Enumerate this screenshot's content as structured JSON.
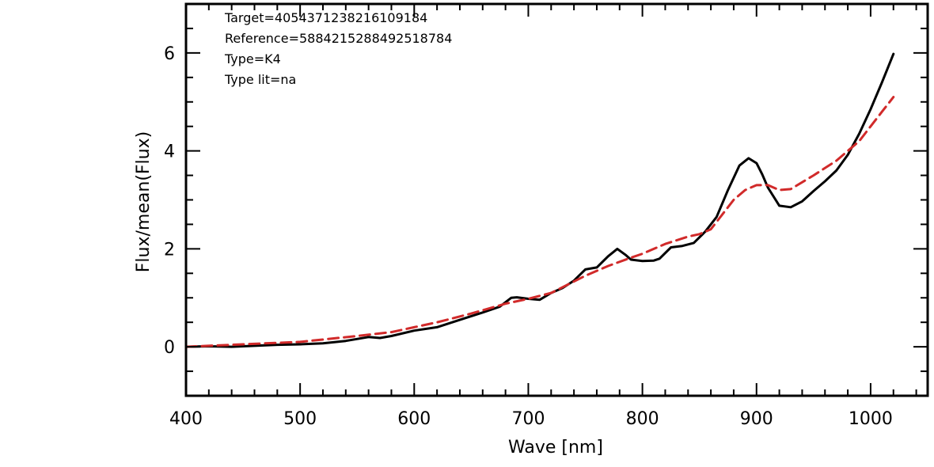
{
  "chart_data": {
    "type": "line",
    "title": "",
    "xlabel": "Wave [nm]",
    "ylabel": "Flux/mean(Flux)",
    "xlim": [
      400,
      1050
    ],
    "ylim": [
      -1,
      7
    ],
    "x_ticks": [
      400,
      500,
      600,
      700,
      800,
      900,
      1000
    ],
    "y_ticks": [
      0,
      2,
      4,
      6
    ],
    "grid": false,
    "legend": "none",
    "annotations": [
      "Target=4054371238216109184",
      "Reference=5884215288492518784",
      "Type=K4",
      "Type lit=na"
    ],
    "series": [
      {
        "style": "solid",
        "color": "#000000",
        "x": [
          400,
          420,
          440,
          460,
          480,
          500,
          520,
          540,
          560,
          570,
          580,
          600,
          620,
          640,
          660,
          675,
          685,
          690,
          700,
          710,
          720,
          730,
          740,
          750,
          760,
          770,
          778,
          785,
          790,
          800,
          810,
          815,
          825,
          835,
          845,
          855,
          865,
          875,
          885,
          893,
          900,
          905,
          910,
          920,
          930,
          940,
          950,
          960,
          970,
          980,
          990,
          1000,
          1010,
          1020
        ],
        "y": [
          0.0,
          0.01,
          0.0,
          0.02,
          0.04,
          0.05,
          0.07,
          0.12,
          0.2,
          0.18,
          0.22,
          0.33,
          0.4,
          0.55,
          0.7,
          0.82,
          1.0,
          1.01,
          0.98,
          0.96,
          1.1,
          1.2,
          1.35,
          1.58,
          1.62,
          1.85,
          2.0,
          1.88,
          1.78,
          1.75,
          1.76,
          1.8,
          2.03,
          2.06,
          2.12,
          2.35,
          2.65,
          3.2,
          3.7,
          3.85,
          3.75,
          3.52,
          3.25,
          2.88,
          2.85,
          2.97,
          3.18,
          3.38,
          3.6,
          3.92,
          4.35,
          4.85,
          5.4,
          5.98
        ]
      },
      {
        "style": "dashed",
        "color": "#d12a2a",
        "x": [
          400,
          450,
          500,
          550,
          580,
          600,
          620,
          650,
          680,
          700,
          720,
          750,
          770,
          790,
          800,
          820,
          840,
          850,
          860,
          870,
          880,
          890,
          900,
          910,
          920,
          930,
          950,
          970,
          990,
          1010,
          1020
        ],
        "y": [
          0.0,
          0.05,
          0.1,
          0.22,
          0.3,
          0.4,
          0.5,
          0.68,
          0.88,
          0.98,
          1.1,
          1.45,
          1.65,
          1.82,
          1.9,
          2.1,
          2.25,
          2.3,
          2.4,
          2.7,
          3.0,
          3.2,
          3.3,
          3.3,
          3.2,
          3.22,
          3.5,
          3.8,
          4.2,
          4.8,
          5.1
        ]
      }
    ]
  }
}
